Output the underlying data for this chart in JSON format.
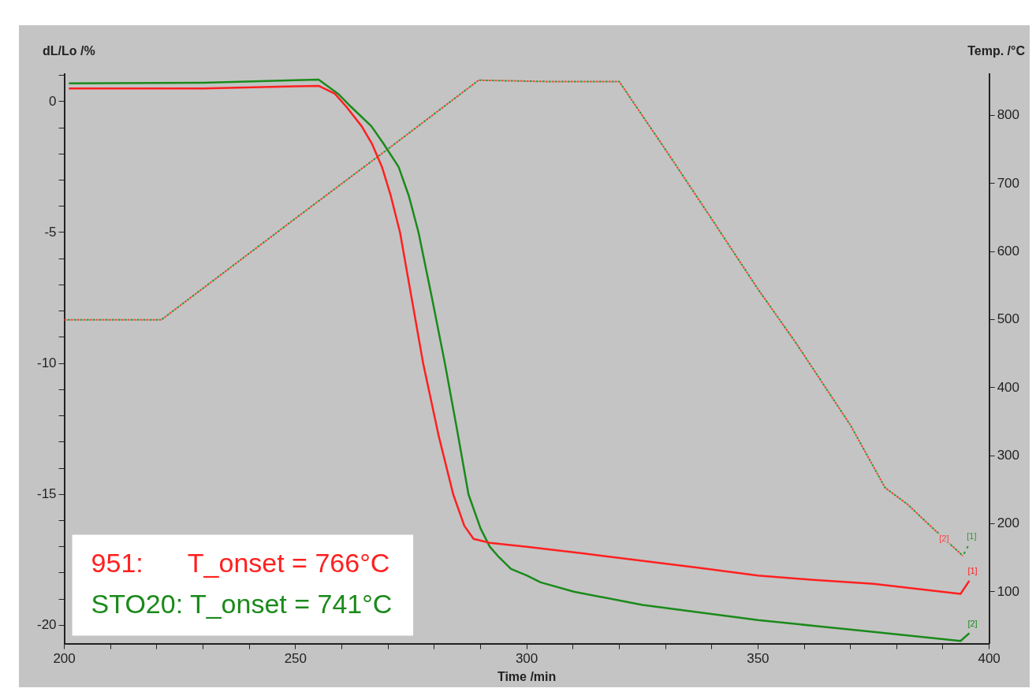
{
  "chart_data": {
    "type": "line",
    "xlabel": "Time /min",
    "ylabel": "dL/Lo /%",
    "y2label": "Temp. /°C",
    "xlim": [
      200,
      400
    ],
    "xticks": [
      200,
      {
        "value": 210,
        "label": null
      },
      {
        "value": 220,
        "label": null
      },
      {
        "value": 230,
        "label": null
      },
      {
        "value": 240,
        "label": null
      },
      250,
      {
        "value": 260,
        "label": null
      },
      {
        "value": 270,
        "label": null
      },
      {
        "value": 280,
        "label": null
      },
      {
        "value": 290,
        "label": null
      },
      300,
      {
        "value": 310,
        "label": null
      },
      {
        "value": 320,
        "label": null
      },
      {
        "value": 330,
        "label": null
      },
      {
        "value": 340,
        "label": null
      },
      350,
      {
        "value": 360,
        "label": null
      },
      {
        "value": 370,
        "label": null
      },
      {
        "value": 380,
        "label": null
      },
      {
        "value": 390,
        "label": null
      },
      400
    ],
    "ylim": [
      -20.7,
      1.05
    ],
    "yticks": [
      -20,
      {
        "value": -19,
        "label": null
      },
      {
        "value": -18,
        "label": null
      },
      {
        "value": -17,
        "label": null
      },
      {
        "value": -16,
        "label": null
      },
      -15,
      {
        "value": -14,
        "label": null
      },
      {
        "value": -13,
        "label": null
      },
      {
        "value": -12,
        "label": null
      },
      {
        "value": -11,
        "label": null
      },
      -10,
      {
        "value": -9,
        "label": null
      },
      {
        "value": -8,
        "label": null
      },
      {
        "value": -7,
        "label": null
      },
      {
        "value": -6,
        "label": null
      },
      -5,
      {
        "value": -4,
        "label": null
      },
      {
        "value": -3,
        "label": null
      },
      {
        "value": -2,
        "label": null
      },
      {
        "value": -1,
        "label": null
      },
      0,
      {
        "value": 1,
        "label": null
      }
    ],
    "y2lim": [
      24,
      861
    ],
    "y2ticks": [
      100,
      200,
      300,
      400,
      500,
      600,
      700,
      800
    ],
    "grid": false,
    "legend": false,
    "marker": "none",
    "series": [
      {
        "color": "#ff2020",
        "line_style": "solid",
        "x": [
          201,
          230,
          250,
          255,
          258.5,
          261,
          264.3,
          266.5,
          268.7,
          270.6,
          272.6,
          275,
          277.6,
          281,
          284.1,
          286.5,
          288.5,
          292,
          300,
          312,
          324.6,
          337,
          350,
          362,
          375,
          393.8,
          395.7
        ],
        "values": [
          0.5,
          0.5,
          0.58,
          0.6,
          0.3,
          -0.2,
          -0.94,
          -1.6,
          -2.5,
          -3.6,
          -5,
          -7.4,
          -10,
          -12.8,
          -15,
          -16.2,
          -16.7,
          -16.85,
          -17.0,
          -17.25,
          -17.53,
          -17.8,
          -18.1,
          -18.27,
          -18.42,
          -18.8,
          -18.3
        ]
      },
      {
        "color": "#1a8a1a",
        "line_style": "solid",
        "x": [
          201,
          230,
          250,
          255,
          259.2,
          262,
          266.4,
          269,
          272.3,
          274.5,
          276.6,
          279.5,
          282.3,
          285,
          287.4,
          290,
          292,
          294,
          296.6,
          300,
          303,
          310.2,
          325,
          337,
          350,
          362,
          375,
          393.8,
          395.7
        ],
        "values": [
          0.7,
          0.72,
          0.82,
          0.84,
          0.3,
          -0.2,
          -0.94,
          -1.6,
          -2.5,
          -3.6,
          -5,
          -7.5,
          -10,
          -12.6,
          -15,
          -16.3,
          -17.0,
          -17.4,
          -17.85,
          -18.1,
          -18.36,
          -18.72,
          -19.22,
          -19.5,
          -19.8,
          -20.02,
          -20.25,
          -20.6,
          -20.3
        ]
      },
      {
        "axis": "y2",
        "color": "#ff4040",
        "line_style": "dotted",
        "x": [
          200,
          221,
          250,
          270,
          289.6,
          305,
          320,
          330,
          340,
          350,
          358.3,
          370,
          377.5,
          382.3,
          386,
          390,
          394.3
        ],
        "values": [
          500,
          500,
          649,
          751,
          852,
          850,
          850,
          750,
          648,
          545,
          465,
          345,
          253,
          229,
          205,
          180,
          153
        ]
      },
      {
        "axis": "y2",
        "color": "#2e9a2e",
        "line_style": "dotted",
        "x": [
          200,
          221,
          250,
          270,
          289.6,
          305,
          320,
          330,
          340,
          350,
          358.3,
          370,
          377.5,
          382.3,
          386,
          390,
          394.3,
          395.5
        ],
        "values": [
          500,
          500,
          649,
          751,
          852,
          850,
          850,
          750,
          648,
          545,
          465,
          345,
          253,
          229,
          205,
          180,
          153,
          168
        ]
      }
    ],
    "annotations": [
      "951:      T_onset = 766°C",
      "STO20: T_onset = 741°C",
      "[1]",
      "[2]",
      "[2]",
      "[1]"
    ]
  }
}
